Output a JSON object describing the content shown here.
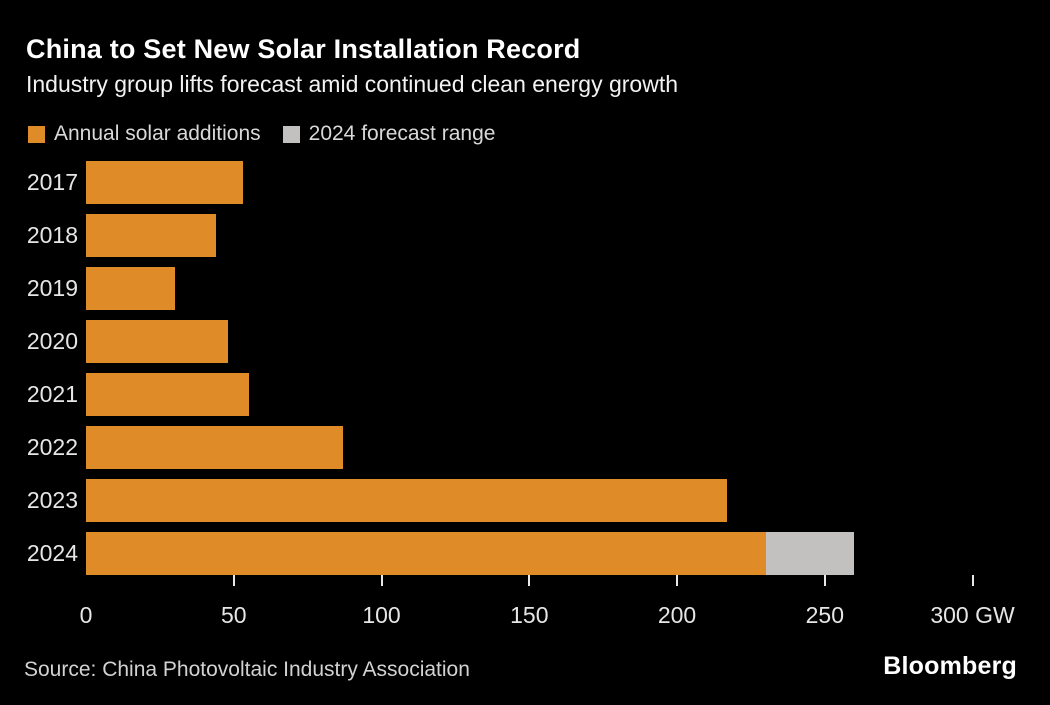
{
  "header": {
    "title": "China to Set New Solar Installation Record",
    "subtitle": "Industry group lifts forecast amid continued clean energy growth"
  },
  "legend": {
    "items": [
      {
        "label": "Annual solar additions",
        "color": "#df8c28"
      },
      {
        "label": "2024 forecast range",
        "color": "#c2c1bf"
      }
    ]
  },
  "chart_data": {
    "type": "bar",
    "orientation": "horizontal",
    "title": "China to Set New Solar Installation Record",
    "subtitle": "Industry group lifts forecast amid continued clean energy growth",
    "unit": "GW",
    "categories": [
      "2017",
      "2018",
      "2019",
      "2020",
      "2021",
      "2022",
      "2023",
      "2024"
    ],
    "series": [
      {
        "name": "Annual solar additions",
        "color": "#df8c28",
        "values": [
          53,
          44,
          30,
          48,
          55,
          87,
          217,
          230
        ]
      },
      {
        "name": "2024 forecast range",
        "color": "#c2c1bf",
        "ranges": [
          null,
          null,
          null,
          null,
          null,
          null,
          null,
          [
            230,
            260
          ]
        ]
      }
    ],
    "x_axis": {
      "ticks": [
        0,
        50,
        100,
        150,
        200,
        250,
        300
      ],
      "tick_labels": [
        "0",
        "50",
        "100",
        "150",
        "200",
        "250",
        "300 GW"
      ],
      "min": 0,
      "max": 318
    },
    "grid": false,
    "legend_position": "top-left",
    "background": "#000000"
  },
  "footer": {
    "source": "Source: China Photovoltaic Industry Association",
    "brand": "Bloomberg"
  }
}
